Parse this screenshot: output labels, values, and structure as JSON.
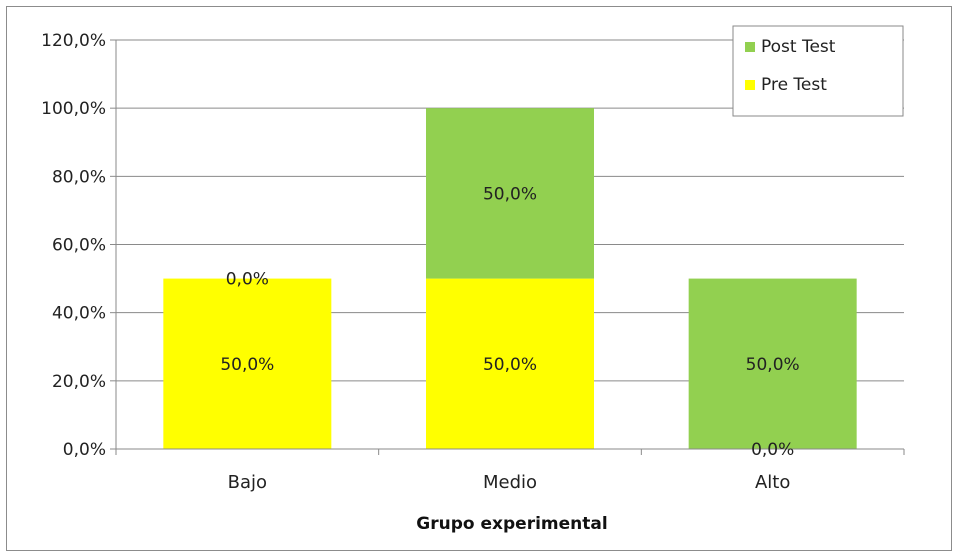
{
  "chart_data": {
    "type": "bar",
    "stacked": true,
    "categories": [
      "Bajo",
      "Medio",
      "Alto"
    ],
    "series": [
      {
        "name": "Pre Test",
        "values": [
          50.0,
          50.0,
          0.0
        ],
        "labels": [
          "50,0%",
          "50,0%",
          "0,0%"
        ],
        "color": "#ffff00"
      },
      {
        "name": "Post Test",
        "values": [
          0.0,
          50.0,
          50.0
        ],
        "labels": [
          "0,0%",
          "50,0%",
          "50,0%"
        ],
        "color": "#92d050"
      }
    ],
    "xlabel": "Grupo experimental",
    "ylabel": "",
    "ylim": [
      0,
      120
    ],
    "yticks": [
      0,
      20,
      40,
      60,
      80,
      100,
      120
    ],
    "ytick_labels": [
      "0,0%",
      "20,0%",
      "40,0%",
      "60,0%",
      "80,0%",
      "100,0%",
      "120,0%"
    ],
    "grid": true,
    "legend_position": "top-right",
    "legend_order": [
      "Post Test",
      "Pre Test"
    ]
  }
}
